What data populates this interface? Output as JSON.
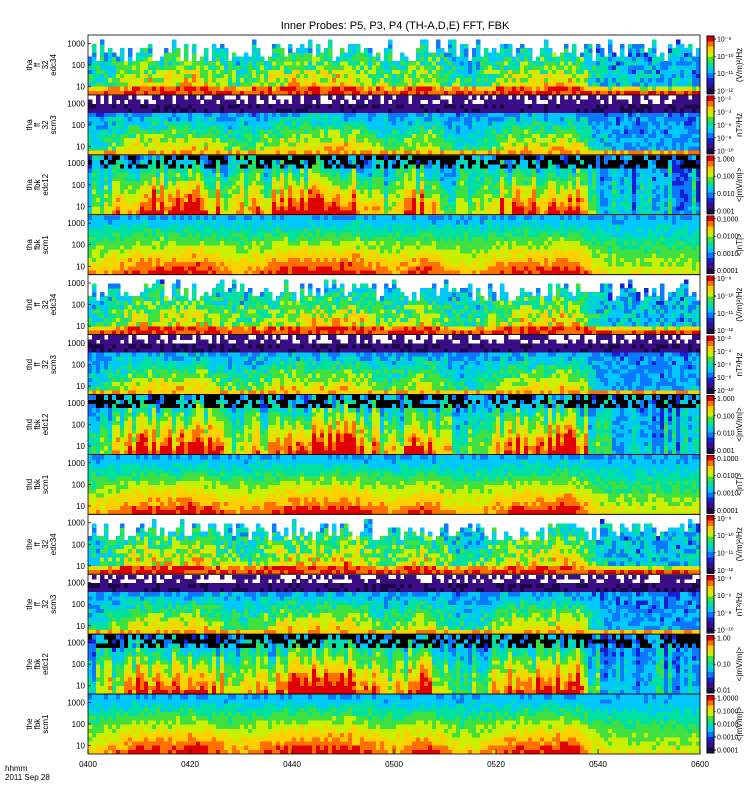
{
  "chart_data": {
    "type": "heatmap",
    "title": "Inner Probes: P5, P3, P4 (TH-A,D,E) FFT, FBK",
    "xaxis": {
      "ticks": [
        "0400",
        "0420",
        "0440",
        "0500",
        "0520",
        "0540",
        "0600"
      ],
      "start_label": "hhmm",
      "date_label": "2011 Sep 28"
    },
    "colors": {
      "scale": [
        "#ffffff",
        "#1b0a4a",
        "#3a0d86",
        "#1420d8",
        "#0a78ff",
        "#00c8ff",
        "#00e0a0",
        "#40e040",
        "#c8f000",
        "#ffd000",
        "#ff7000",
        "#e00000"
      ],
      "overflow": "#000000",
      "frame": "#000000",
      "page": "#ffffff"
    },
    "panels": [
      {
        "l1": "tha",
        "l2": "ff",
        "l3": "32",
        "l4": "edc34",
        "yticks": [
          "1000",
          "100",
          "10"
        ],
        "unit": "(V/m)²/Hz",
        "cbar": [
          "10⁻⁹",
          "10⁻¹⁰",
          "10⁻¹¹",
          "10⁻¹²"
        ],
        "kind": "ffe",
        "seed": 11
      },
      {
        "l1": "tha",
        "l2": "ff",
        "l3": "32",
        "l4": "scm3",
        "yticks": [
          "1000",
          "100",
          "10"
        ],
        "unit": "nT²/Hz",
        "cbar": [
          "10⁻²",
          "10⁻⁴",
          "10⁻⁶",
          "10⁻⁸",
          "10⁻¹⁰"
        ],
        "kind": "ffb",
        "seed": 23
      },
      {
        "l1": "tha",
        "l2": "fbk",
        "l3": "",
        "l4": "edc12",
        "yticks": [
          "1000",
          "100",
          "10"
        ],
        "unit": "<|mV/m|>",
        "cbar": [
          "1.000",
          "0.100",
          "0.010",
          "0.001"
        ],
        "kind": "fbe",
        "seed": 37
      },
      {
        "l1": "tha",
        "l2": "fbk",
        "l3": "",
        "l4": "scm1",
        "yticks": [
          "1000",
          "100",
          "10"
        ],
        "unit": "<|nT|>",
        "cbar": [
          "0.1000",
          "0.0100",
          "0.0010",
          "0.0001"
        ],
        "kind": "fbb",
        "seed": 41
      },
      {
        "l1": "thd",
        "l2": "ff",
        "l3": "32",
        "l4": "edc34",
        "yticks": [
          "1000",
          "100",
          "10"
        ],
        "unit": "(V/m)²/Hz",
        "cbar": [
          "10⁻⁹",
          "10⁻¹⁰",
          "10⁻¹¹",
          "10⁻¹²"
        ],
        "kind": "ffe",
        "seed": 53
      },
      {
        "l1": "thd",
        "l2": "ff",
        "l3": "32",
        "l4": "scm3",
        "yticks": [
          "1000",
          "100",
          "10"
        ],
        "unit": "nT²/Hz",
        "cbar": [
          "10⁻²",
          "10⁻⁴",
          "10⁻⁶",
          "10⁻⁸",
          "10⁻¹⁰"
        ],
        "kind": "ffb",
        "seed": 67
      },
      {
        "l1": "thd",
        "l2": "fbk",
        "l3": "",
        "l4": "edc12",
        "yticks": [
          "1000",
          "100",
          "10"
        ],
        "unit": "<|mV/m|>",
        "cbar": [
          "1.000",
          "0.100",
          "0.010",
          "0.001"
        ],
        "kind": "fbe",
        "seed": 71
      },
      {
        "l1": "thd",
        "l2": "fbk",
        "l3": "",
        "l4": "scm1",
        "yticks": [
          "1000",
          "100",
          "10"
        ],
        "unit": "<|nT|>",
        "cbar": [
          "0.1000",
          "0.0100",
          "0.0010",
          "0.0001"
        ],
        "kind": "fbb",
        "seed": 83
      },
      {
        "l1": "the",
        "l2": "ff",
        "l3": "32",
        "l4": "edc34",
        "yticks": [
          "1000",
          "100",
          "10"
        ],
        "unit": "(V/m)²/Hz",
        "cbar": [
          "10⁻⁹",
          "10⁻¹⁰",
          "10⁻¹¹",
          "10⁻¹²"
        ],
        "kind": "ffe",
        "seed": 97
      },
      {
        "l1": "the",
        "l2": "ff",
        "l3": "32",
        "l4": "scm3",
        "yticks": [
          "1000",
          "100",
          "10"
        ],
        "unit": "nT²/Hz",
        "cbar": [
          "10⁻⁴",
          "10⁻⁶",
          "10⁻⁸",
          "10⁻¹⁰"
        ],
        "kind": "ffb",
        "seed": 101
      },
      {
        "l1": "the",
        "l2": "fbk",
        "l3": "",
        "l4": "edc12",
        "yticks": [
          "1000",
          "100",
          "10"
        ],
        "unit": "<|mV/m|>",
        "cbar": [
          "1.00",
          "0.10",
          "0.01"
        ],
        "kind": "fbe",
        "seed": 113
      },
      {
        "l1": "the",
        "l2": "fbk",
        "l3": "",
        "l4": "scm1",
        "yticks": [
          "1000",
          "100",
          "10"
        ],
        "unit": "<|mV/m|>",
        "cbar": [
          "1.0000",
          "0.1000",
          "0.0100",
          "0.0010",
          "0.0001"
        ],
        "kind": "fbb",
        "seed": 127
      }
    ]
  }
}
